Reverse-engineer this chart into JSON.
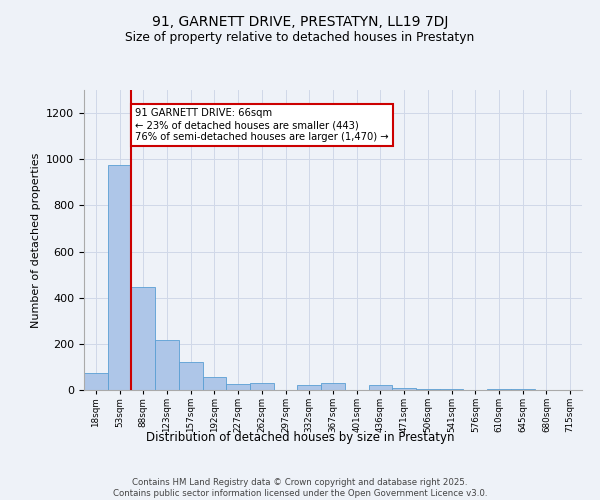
{
  "title1": "91, GARNETT DRIVE, PRESTATYN, LL19 7DJ",
  "title2": "Size of property relative to detached houses in Prestatyn",
  "xlabel": "Distribution of detached houses by size in Prestatyn",
  "ylabel": "Number of detached properties",
  "bar_values": [
    75,
    975,
    445,
    215,
    120,
    55,
    25,
    30,
    0,
    20,
    30,
    0,
    20,
    10,
    5,
    5,
    0,
    5,
    5,
    0
  ],
  "bin_labels": [
    "18sqm",
    "53sqm",
    "88sqm",
    "123sqm",
    "157sqm",
    "192sqm",
    "227sqm",
    "262sqm",
    "297sqm",
    "332sqm",
    "367sqm",
    "401sqm",
    "436sqm",
    "471sqm",
    "506sqm",
    "541sqm",
    "576sqm",
    "610sqm",
    "645sqm",
    "680sqm",
    "715sqm"
  ],
  "bar_color": "#aec6e8",
  "bar_edge_color": "#5a9fd4",
  "grid_color": "#d0d8e8",
  "vline_x_pos": 1.5,
  "vline_color": "#cc0000",
  "annotation_text": "91 GARNETT DRIVE: 66sqm\n← 23% of detached houses are smaller (443)\n76% of semi-detached houses are larger (1,470) →",
  "annotation_box_facecolor": "white",
  "annotation_box_edgecolor": "#cc0000",
  "ylim": [
    0,
    1300
  ],
  "yticks": [
    0,
    200,
    400,
    600,
    800,
    1000,
    1200
  ],
  "footnote1": "Contains HM Land Registry data © Crown copyright and database right 2025.",
  "footnote2": "Contains public sector information licensed under the Open Government Licence v3.0.",
  "bg_color": "#eef2f8"
}
